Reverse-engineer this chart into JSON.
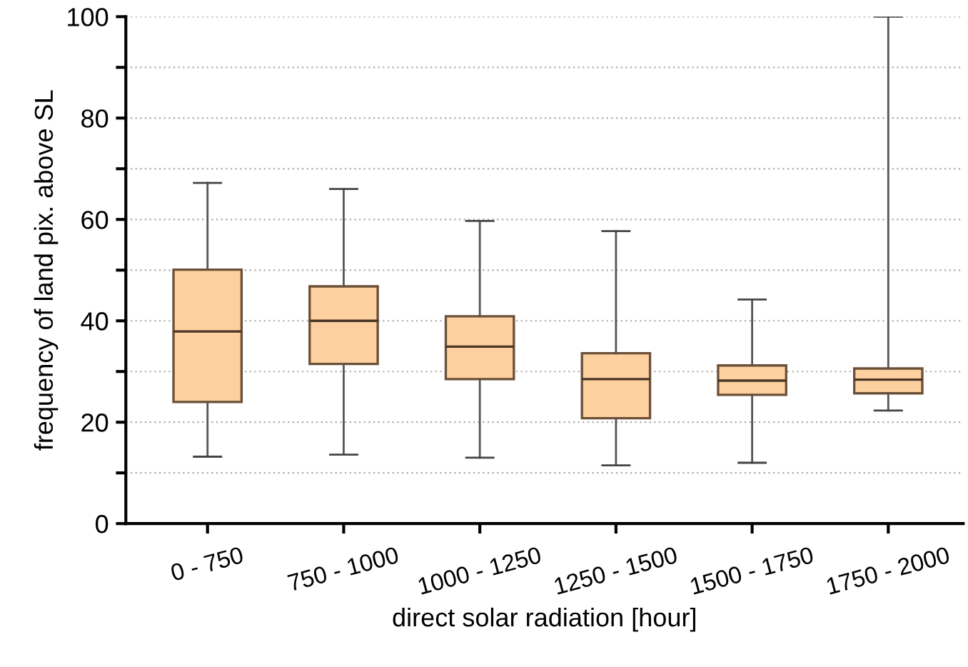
{
  "chart_data": {
    "type": "box",
    "xlabel": "direct solar radiation [hour]",
    "ylabel": "frequency of land pix. above SL",
    "categories": [
      "0 - 750",
      "750 - 1000",
      "1000 - 1250",
      "1250 - 1500",
      "1500 - 1750",
      "1750 - 2000"
    ],
    "series": [
      {
        "color": "#fdd09f",
        "boxes": [
          {
            "low": 13.2,
            "q1": 24.0,
            "median": 37.9,
            "q3": 50.1,
            "high": 67.2
          },
          {
            "low": 13.6,
            "q1": 31.5,
            "median": 40.0,
            "q3": 46.8,
            "high": 66.0
          },
          {
            "low": 13.0,
            "q1": 28.5,
            "median": 34.9,
            "q3": 40.9,
            "high": 59.7
          },
          {
            "low": 11.5,
            "q1": 20.8,
            "median": 28.5,
            "q3": 33.6,
            "high": 57.7
          },
          {
            "low": 12.0,
            "q1": 25.4,
            "median": 28.2,
            "q3": 31.2,
            "high": 44.2
          },
          {
            "low": 22.3,
            "q1": 25.7,
            "median": 28.4,
            "q3": 30.6,
            "high": 100
          }
        ]
      }
    ],
    "ylim": [
      0,
      100
    ],
    "yticks": [
      0,
      {
        "value": 10,
        "label": null
      },
      20,
      {
        "value": 30,
        "label": null
      },
      40,
      {
        "value": 50,
        "label": null
      },
      60,
      {
        "value": 70,
        "label": null
      },
      80,
      {
        "value": 90,
        "label": null
      },
      100
    ],
    "grid": "y"
  }
}
